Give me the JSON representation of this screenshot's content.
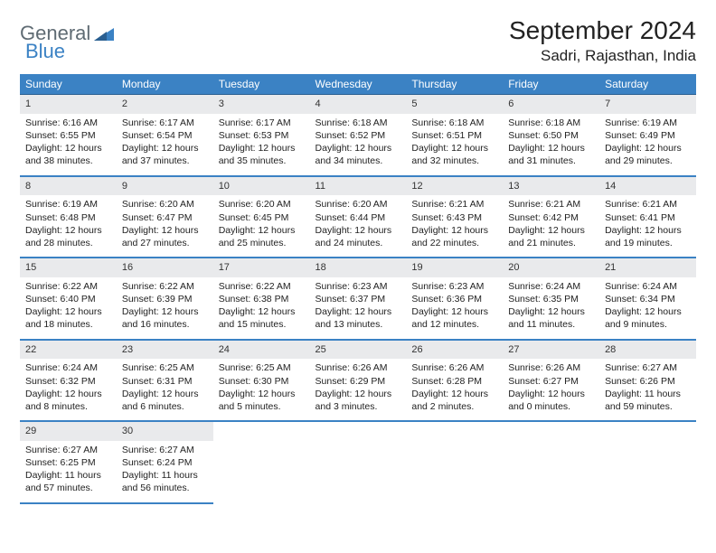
{
  "branding": {
    "word1": "General",
    "word2": "Blue",
    "accent_color": "#3b82c4",
    "text_color": "#5f6b73"
  },
  "header": {
    "month_title": "September 2024",
    "location": "Sadri, Rajasthan, India"
  },
  "calendar": {
    "day_headers": [
      "Sunday",
      "Monday",
      "Tuesday",
      "Wednesday",
      "Thursday",
      "Friday",
      "Saturday"
    ],
    "header_bg": "#3b82c4",
    "header_fg": "#ffffff",
    "daynum_bg": "#e9eaec",
    "border_color": "#3b82c4",
    "weeks": [
      [
        {
          "n": "1",
          "sunrise": "Sunrise: 6:16 AM",
          "sunset": "Sunset: 6:55 PM",
          "day1": "Daylight: 12 hours",
          "day2": "and 38 minutes."
        },
        {
          "n": "2",
          "sunrise": "Sunrise: 6:17 AM",
          "sunset": "Sunset: 6:54 PM",
          "day1": "Daylight: 12 hours",
          "day2": "and 37 minutes."
        },
        {
          "n": "3",
          "sunrise": "Sunrise: 6:17 AM",
          "sunset": "Sunset: 6:53 PM",
          "day1": "Daylight: 12 hours",
          "day2": "and 35 minutes."
        },
        {
          "n": "4",
          "sunrise": "Sunrise: 6:18 AM",
          "sunset": "Sunset: 6:52 PM",
          "day1": "Daylight: 12 hours",
          "day2": "and 34 minutes."
        },
        {
          "n": "5",
          "sunrise": "Sunrise: 6:18 AM",
          "sunset": "Sunset: 6:51 PM",
          "day1": "Daylight: 12 hours",
          "day2": "and 32 minutes."
        },
        {
          "n": "6",
          "sunrise": "Sunrise: 6:18 AM",
          "sunset": "Sunset: 6:50 PM",
          "day1": "Daylight: 12 hours",
          "day2": "and 31 minutes."
        },
        {
          "n": "7",
          "sunrise": "Sunrise: 6:19 AM",
          "sunset": "Sunset: 6:49 PM",
          "day1": "Daylight: 12 hours",
          "day2": "and 29 minutes."
        }
      ],
      [
        {
          "n": "8",
          "sunrise": "Sunrise: 6:19 AM",
          "sunset": "Sunset: 6:48 PM",
          "day1": "Daylight: 12 hours",
          "day2": "and 28 minutes."
        },
        {
          "n": "9",
          "sunrise": "Sunrise: 6:20 AM",
          "sunset": "Sunset: 6:47 PM",
          "day1": "Daylight: 12 hours",
          "day2": "and 27 minutes."
        },
        {
          "n": "10",
          "sunrise": "Sunrise: 6:20 AM",
          "sunset": "Sunset: 6:45 PM",
          "day1": "Daylight: 12 hours",
          "day2": "and 25 minutes."
        },
        {
          "n": "11",
          "sunrise": "Sunrise: 6:20 AM",
          "sunset": "Sunset: 6:44 PM",
          "day1": "Daylight: 12 hours",
          "day2": "and 24 minutes."
        },
        {
          "n": "12",
          "sunrise": "Sunrise: 6:21 AM",
          "sunset": "Sunset: 6:43 PM",
          "day1": "Daylight: 12 hours",
          "day2": "and 22 minutes."
        },
        {
          "n": "13",
          "sunrise": "Sunrise: 6:21 AM",
          "sunset": "Sunset: 6:42 PM",
          "day1": "Daylight: 12 hours",
          "day2": "and 21 minutes."
        },
        {
          "n": "14",
          "sunrise": "Sunrise: 6:21 AM",
          "sunset": "Sunset: 6:41 PM",
          "day1": "Daylight: 12 hours",
          "day2": "and 19 minutes."
        }
      ],
      [
        {
          "n": "15",
          "sunrise": "Sunrise: 6:22 AM",
          "sunset": "Sunset: 6:40 PM",
          "day1": "Daylight: 12 hours",
          "day2": "and 18 minutes."
        },
        {
          "n": "16",
          "sunrise": "Sunrise: 6:22 AM",
          "sunset": "Sunset: 6:39 PM",
          "day1": "Daylight: 12 hours",
          "day2": "and 16 minutes."
        },
        {
          "n": "17",
          "sunrise": "Sunrise: 6:22 AM",
          "sunset": "Sunset: 6:38 PM",
          "day1": "Daylight: 12 hours",
          "day2": "and 15 minutes."
        },
        {
          "n": "18",
          "sunrise": "Sunrise: 6:23 AM",
          "sunset": "Sunset: 6:37 PM",
          "day1": "Daylight: 12 hours",
          "day2": "and 13 minutes."
        },
        {
          "n": "19",
          "sunrise": "Sunrise: 6:23 AM",
          "sunset": "Sunset: 6:36 PM",
          "day1": "Daylight: 12 hours",
          "day2": "and 12 minutes."
        },
        {
          "n": "20",
          "sunrise": "Sunrise: 6:24 AM",
          "sunset": "Sunset: 6:35 PM",
          "day1": "Daylight: 12 hours",
          "day2": "and 11 minutes."
        },
        {
          "n": "21",
          "sunrise": "Sunrise: 6:24 AM",
          "sunset": "Sunset: 6:34 PM",
          "day1": "Daylight: 12 hours",
          "day2": "and 9 minutes."
        }
      ],
      [
        {
          "n": "22",
          "sunrise": "Sunrise: 6:24 AM",
          "sunset": "Sunset: 6:32 PM",
          "day1": "Daylight: 12 hours",
          "day2": "and 8 minutes."
        },
        {
          "n": "23",
          "sunrise": "Sunrise: 6:25 AM",
          "sunset": "Sunset: 6:31 PM",
          "day1": "Daylight: 12 hours",
          "day2": "and 6 minutes."
        },
        {
          "n": "24",
          "sunrise": "Sunrise: 6:25 AM",
          "sunset": "Sunset: 6:30 PM",
          "day1": "Daylight: 12 hours",
          "day2": "and 5 minutes."
        },
        {
          "n": "25",
          "sunrise": "Sunrise: 6:26 AM",
          "sunset": "Sunset: 6:29 PM",
          "day1": "Daylight: 12 hours",
          "day2": "and 3 minutes."
        },
        {
          "n": "26",
          "sunrise": "Sunrise: 6:26 AM",
          "sunset": "Sunset: 6:28 PM",
          "day1": "Daylight: 12 hours",
          "day2": "and 2 minutes."
        },
        {
          "n": "27",
          "sunrise": "Sunrise: 6:26 AM",
          "sunset": "Sunset: 6:27 PM",
          "day1": "Daylight: 12 hours",
          "day2": "and 0 minutes."
        },
        {
          "n": "28",
          "sunrise": "Sunrise: 6:27 AM",
          "sunset": "Sunset: 6:26 PM",
          "day1": "Daylight: 11 hours",
          "day2": "and 59 minutes."
        }
      ],
      [
        {
          "n": "29",
          "sunrise": "Sunrise: 6:27 AM",
          "sunset": "Sunset: 6:25 PM",
          "day1": "Daylight: 11 hours",
          "day2": "and 57 minutes."
        },
        {
          "n": "30",
          "sunrise": "Sunrise: 6:27 AM",
          "sunset": "Sunset: 6:24 PM",
          "day1": "Daylight: 11 hours",
          "day2": "and 56 minutes."
        },
        null,
        null,
        null,
        null,
        null
      ]
    ]
  }
}
